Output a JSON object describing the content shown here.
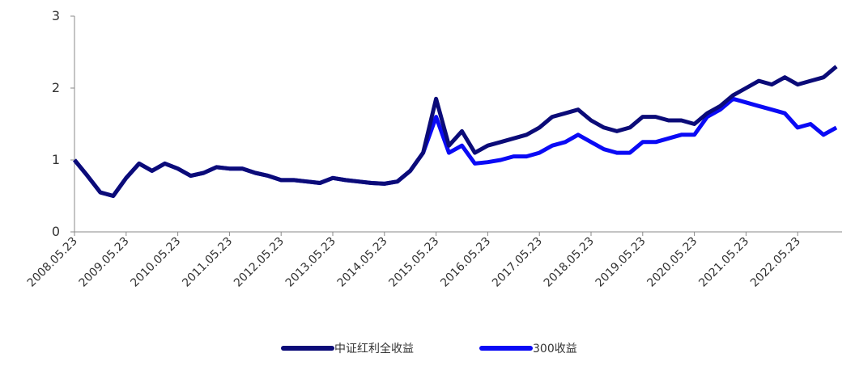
{
  "chart_data": {
    "type": "line",
    "categories": [
      "2008.05.23",
      null,
      null,
      null,
      "2009.05.23",
      null,
      null,
      null,
      "2010.05.23",
      null,
      null,
      null,
      "2011.05.23",
      null,
      null,
      null,
      "2012.05.23",
      null,
      null,
      null,
      "2013.05.23",
      null,
      null,
      null,
      "2014.05.23",
      null,
      null,
      null,
      "2015.05.23",
      null,
      null,
      null,
      "2016.05.23",
      null,
      null,
      null,
      "2017.05.23",
      null,
      null,
      null,
      "2018.05.23",
      null,
      null,
      null,
      "2019.05.23",
      null,
      null,
      null,
      "2020.05.23",
      null,
      null,
      null,
      "2021.05.23",
      null,
      null,
      null,
      "2022.05.23",
      null,
      null,
      null
    ],
    "series": [
      {
        "name": "中证红利全收益",
        "color": "#0b0b78",
        "values": [
          1.0,
          0.78,
          0.55,
          0.5,
          0.75,
          0.95,
          0.85,
          0.95,
          0.88,
          0.78,
          0.82,
          0.9,
          0.88,
          0.88,
          0.82,
          0.78,
          0.72,
          0.72,
          0.7,
          0.68,
          0.75,
          0.72,
          0.7,
          0.68,
          0.67,
          0.7,
          0.85,
          1.1,
          1.85,
          1.2,
          1.4,
          1.1,
          1.2,
          1.25,
          1.3,
          1.35,
          1.45,
          1.6,
          1.65,
          1.7,
          1.55,
          1.45,
          1.4,
          1.45,
          1.6,
          1.6,
          1.55,
          1.55,
          1.5,
          1.65,
          1.75,
          1.9,
          2.0,
          2.1,
          2.05,
          2.15,
          2.05,
          2.1,
          2.15,
          2.3
        ]
      },
      {
        "name": "300收益",
        "color": "#0a0af5",
        "values": [
          1.0,
          0.78,
          0.55,
          0.5,
          0.75,
          0.95,
          0.85,
          0.95,
          0.88,
          0.78,
          0.82,
          0.9,
          0.88,
          0.88,
          0.82,
          0.78,
          0.72,
          0.72,
          0.7,
          0.68,
          0.75,
          0.72,
          0.7,
          0.68,
          0.67,
          0.7,
          0.85,
          1.1,
          1.6,
          1.1,
          1.2,
          0.95,
          0.97,
          1.0,
          1.05,
          1.05,
          1.1,
          1.2,
          1.25,
          1.35,
          1.25,
          1.15,
          1.1,
          1.1,
          1.25,
          1.25,
          1.3,
          1.35,
          1.35,
          1.6,
          1.7,
          1.85,
          1.8,
          1.75,
          1.7,
          1.65,
          1.45,
          1.5,
          1.35,
          1.45
        ]
      }
    ],
    "ylim": [
      0,
      3
    ],
    "yticks": [
      0,
      1,
      2,
      3
    ],
    "grid": false
  }
}
